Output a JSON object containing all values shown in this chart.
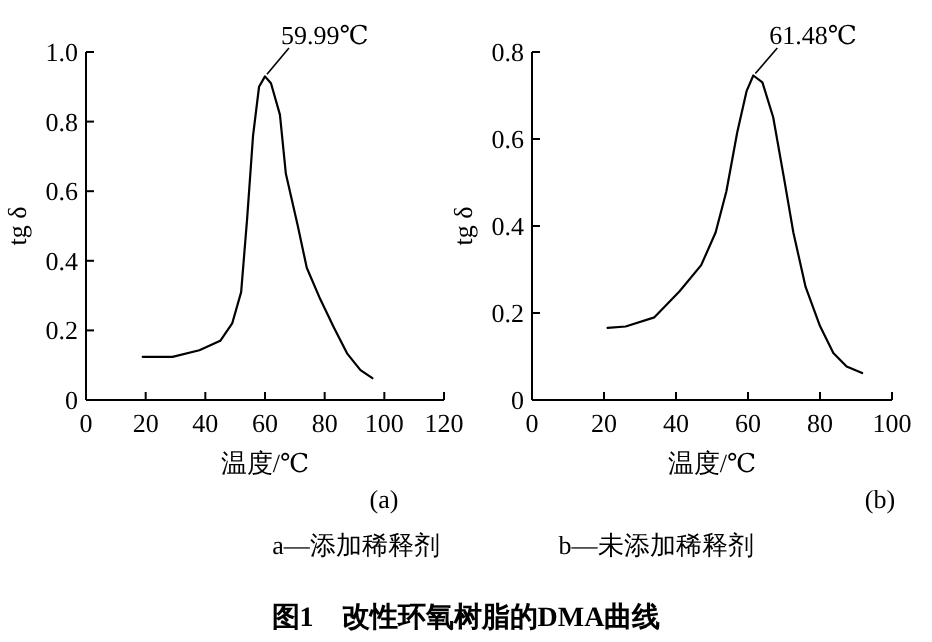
{
  "chart_data": [
    {
      "type": "line",
      "title": "图1　改性环氧树脂的DMA曲线",
      "xlabel": "温度/℃",
      "ylabel": "tg δ",
      "xlim": [
        0,
        120
      ],
      "xticks": [
        0,
        20,
        40,
        60,
        80,
        100,
        120
      ],
      "ylim": [
        0,
        1
      ],
      "yticks": [
        0,
        0.2,
        0.4,
        0.6,
        0.8,
        {
          "value": 1,
          "label": "1.0"
        }
      ],
      "series": [
        {
          "color": "#000000",
          "x": [
            19,
            29,
            38,
            45,
            49,
            52,
            54,
            56,
            58,
            59.99,
            62,
            65,
            67,
            71,
            74,
            78.5,
            83,
            87.5,
            92,
            96
          ],
          "values": [
            0.124,
            0.124,
            0.143,
            0.17,
            0.22,
            0.31,
            0.52,
            0.76,
            0.9,
            0.93,
            0.91,
            0.82,
            0.65,
            0.5,
            0.38,
            0.29,
            0.21,
            0.134,
            0.086,
            0.063
          ]
        }
      ],
      "annotations": [
        {
          "text": "59.99℃",
          "x": 59.99,
          "y": 0.93
        },
        "(a)",
        "a—添加稀释剂"
      ]
    },
    {
      "type": "line",
      "xlabel": "温度/℃",
      "ylabel": "tg δ",
      "xlim": [
        0,
        100
      ],
      "xticks": [
        0,
        20,
        40,
        60,
        80,
        100
      ],
      "ylim": [
        0,
        0.8
      ],
      "yticks": [
        0,
        0.2,
        0.4,
        0.6,
        0.8
      ],
      "series": [
        {
          "color": "#000000",
          "x": [
            21,
            26,
            34,
            41,
            47,
            51,
            54,
            57,
            59.6,
            61.48,
            64,
            67,
            70,
            72.6,
            76,
            80,
            83.7,
            87.4,
            91.7
          ],
          "values": [
            0.166,
            0.169,
            0.19,
            0.25,
            0.31,
            0.385,
            0.48,
            0.615,
            0.71,
            0.746,
            0.73,
            0.65,
            0.51,
            0.385,
            0.26,
            0.17,
            0.108,
            0.077,
            0.062
          ]
        }
      ],
      "annotations": [
        {
          "text": "61.48℃",
          "x": 61.48,
          "y": 0.746
        },
        "(b)",
        "b—未添加稀释剂"
      ]
    }
  ]
}
